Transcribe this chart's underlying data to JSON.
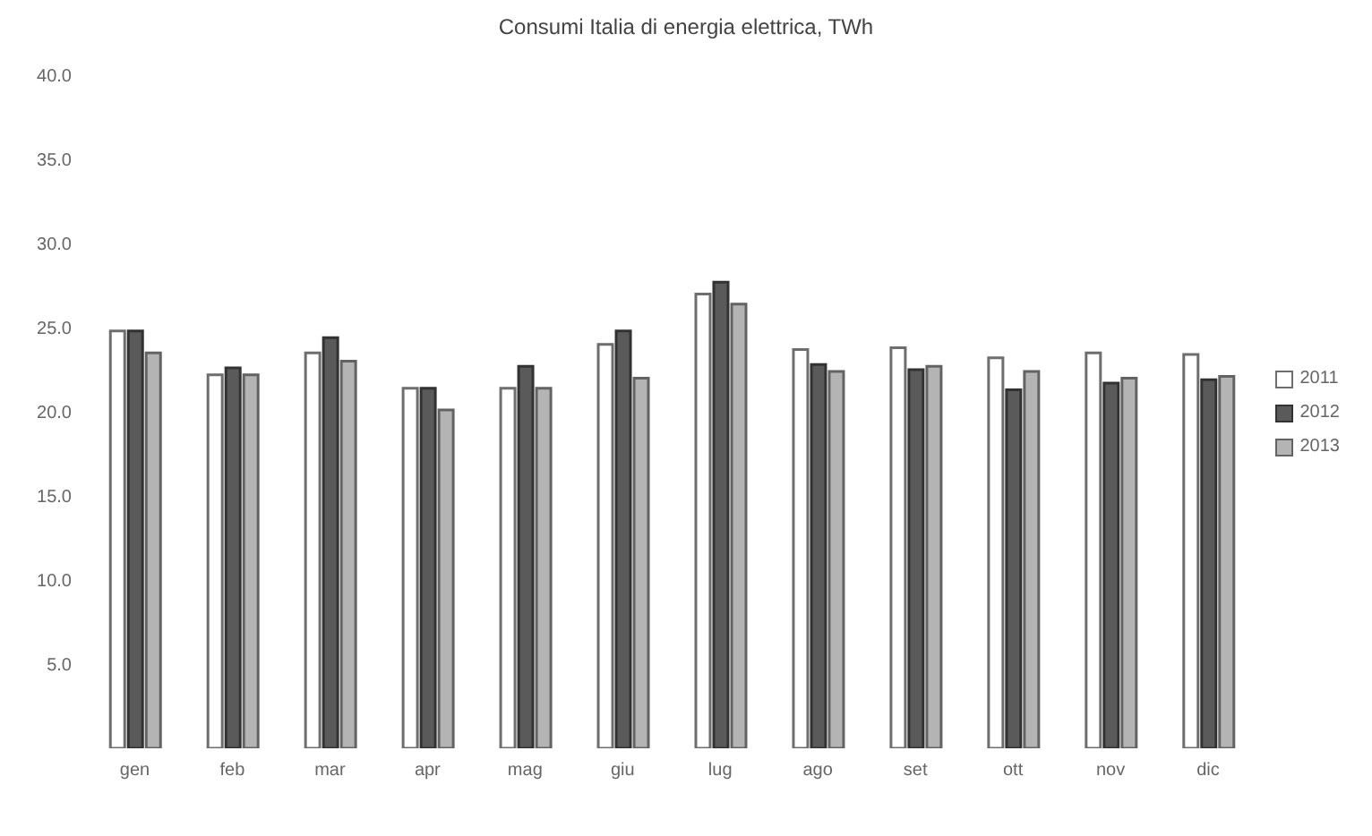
{
  "chart_data": {
    "type": "bar",
    "title": "Consumi Italia di energia elettrica, TWh",
    "categories": [
      "gen",
      "feb",
      "mar",
      "apr",
      "mag",
      "giu",
      "lug",
      "ago",
      "set",
      "ott",
      "nov",
      "dic"
    ],
    "series": [
      {
        "name": "2011",
        "color": "#ffffff",
        "values": [
          24.8,
          22.2,
          23.5,
          21.4,
          21.4,
          24.0,
          27.0,
          23.7,
          23.8,
          23.2,
          23.5,
          23.4
        ]
      },
      {
        "name": "2012",
        "color": "#5a5a5a",
        "values": [
          24.8,
          22.6,
          24.4,
          21.4,
          22.7,
          24.8,
          27.7,
          22.8,
          22.5,
          21.3,
          21.7,
          21.9
        ]
      },
      {
        "name": "2013",
        "color": "#b4b4b4",
        "values": [
          23.5,
          22.2,
          23.0,
          20.1,
          21.4,
          22.0,
          26.4,
          22.4,
          22.7,
          22.4,
          22.0,
          22.1
        ]
      }
    ],
    "ylim": [
      0,
      40
    ],
    "yticks": [
      {
        "value": 5,
        "label": "5.0"
      },
      {
        "value": 10,
        "label": "10.0"
      },
      {
        "value": 15,
        "label": "15.0"
      },
      {
        "value": 20,
        "label": "20.0"
      },
      {
        "value": 25,
        "label": "25.0"
      },
      {
        "value": 30,
        "label": "30.0"
      },
      {
        "value": 35,
        "label": "35.0"
      },
      {
        "value": 40,
        "label": "40.0"
      }
    ],
    "grid": false,
    "legend": "right"
  }
}
